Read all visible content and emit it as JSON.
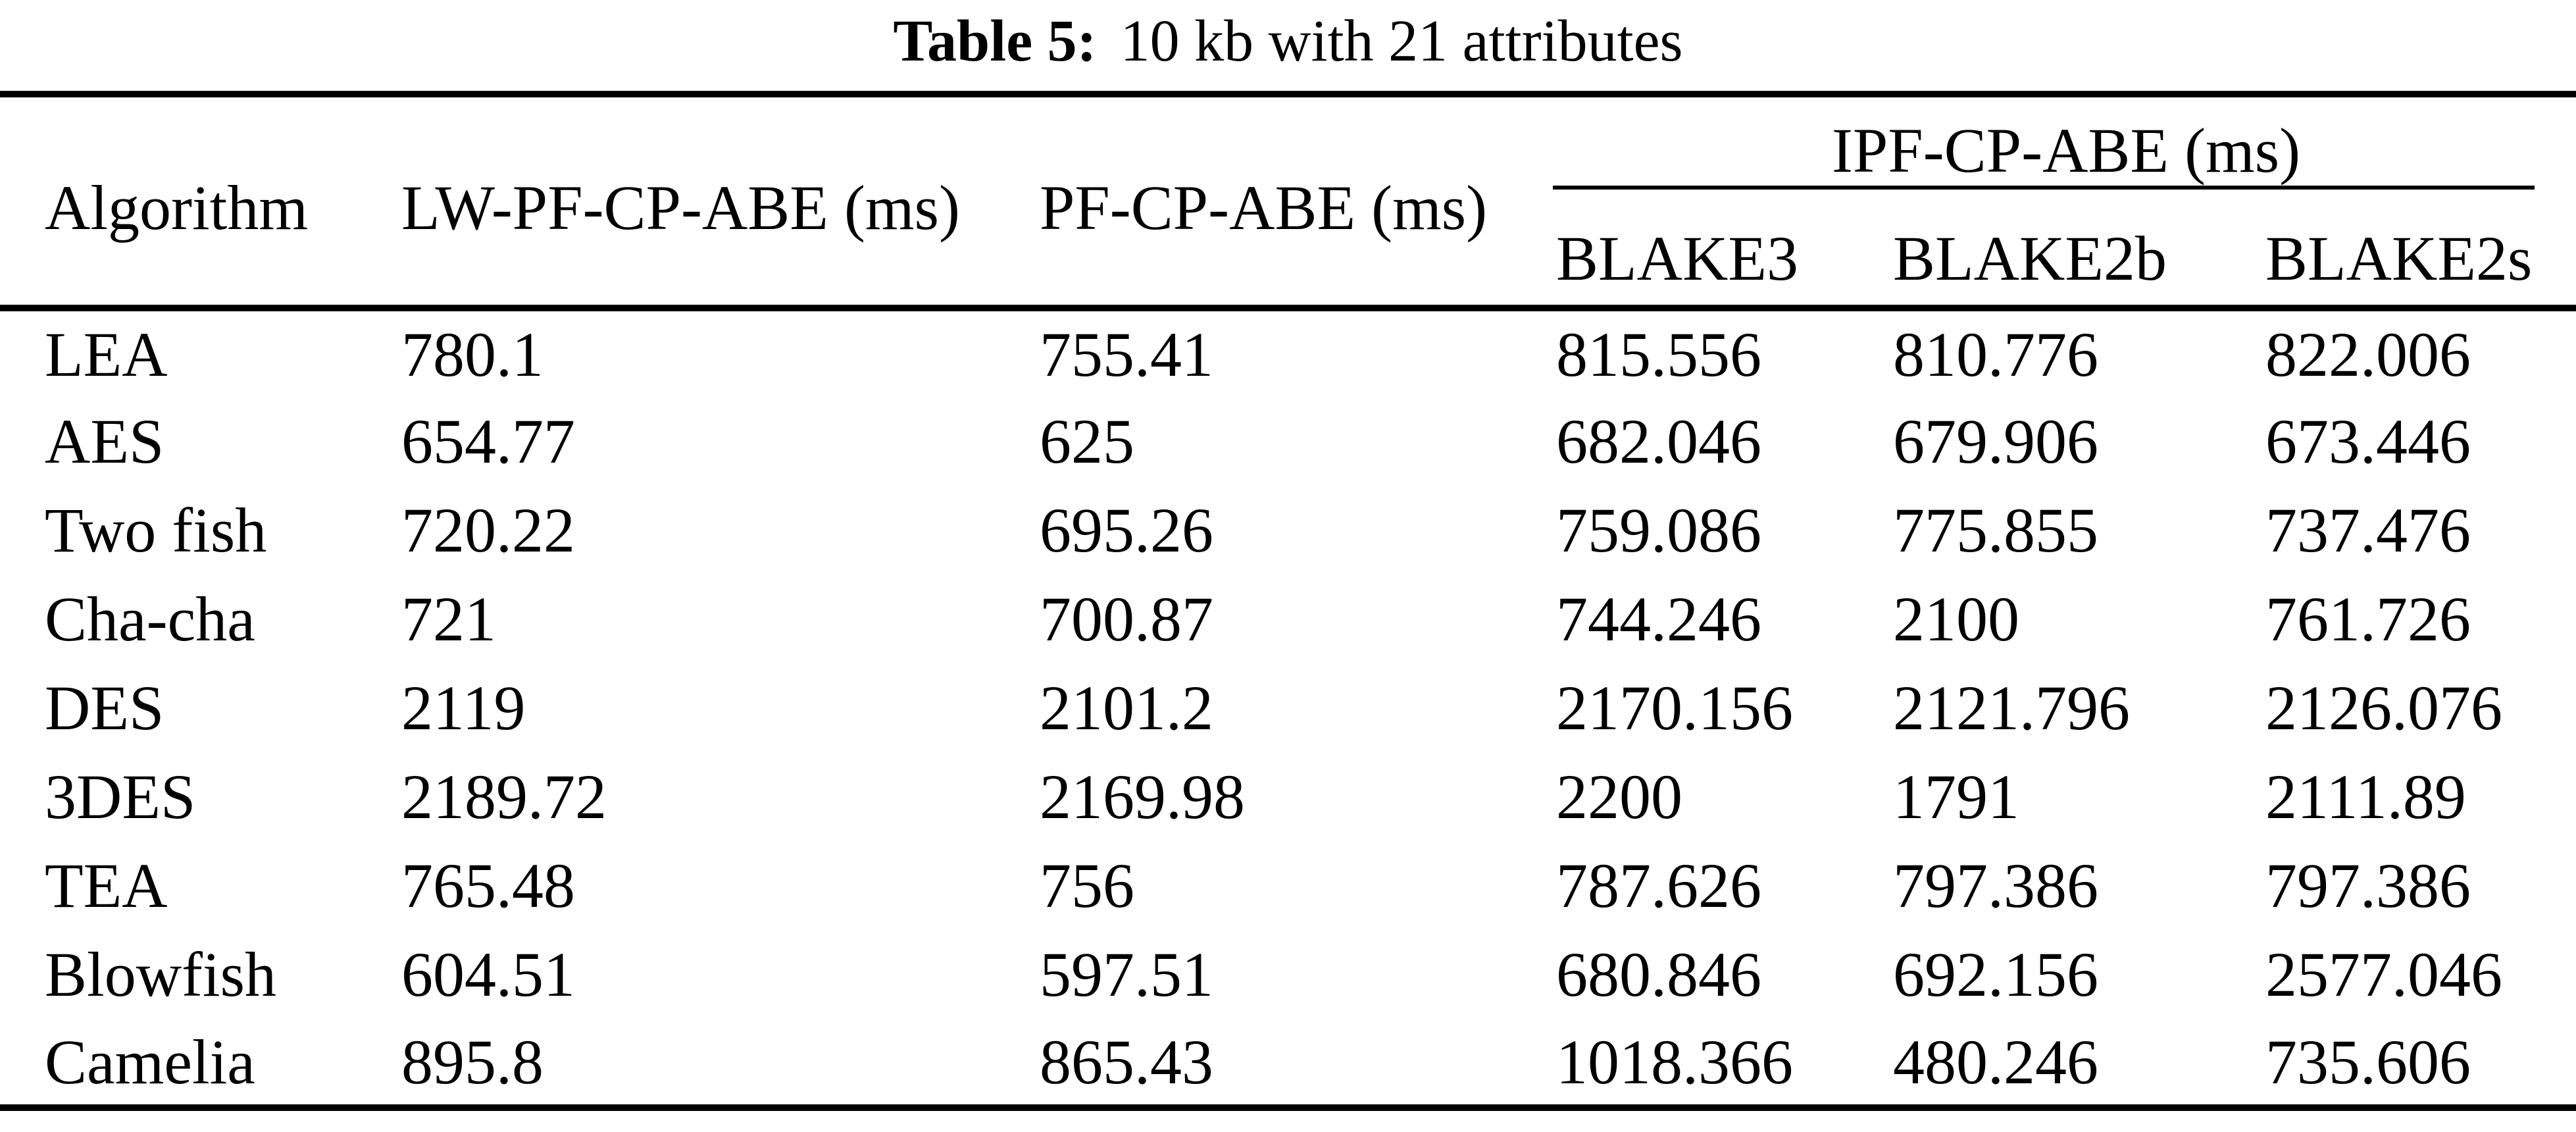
{
  "caption": {
    "label": "Table 5:",
    "title": "10 kb with 21 attributes"
  },
  "table": {
    "col_algorithm": "Algorithm",
    "col_lw": "LW-PF-CP-ABE (ms)",
    "col_pf": "PF-CP-ABE (ms)",
    "col_ipf": "IPF-CP-ABE (ms)",
    "sub_cols": [
      "BLAKE3",
      "BLAKE2b",
      "BLAKE2s"
    ],
    "rows": [
      {
        "algorithm": "LEA",
        "lw": "780.1",
        "pf": "755.41",
        "blake3": "815.556",
        "blake2b": "810.776",
        "blake2s": "822.006"
      },
      {
        "algorithm": "AES",
        "lw": "654.77",
        "pf": "625",
        "blake3": "682.046",
        "blake2b": "679.906",
        "blake2s": "673.446"
      },
      {
        "algorithm": "Two fish",
        "lw": "720.22",
        "pf": "695.26",
        "blake3": "759.086",
        "blake2b": "775.855",
        "blake2s": "737.476"
      },
      {
        "algorithm": "Cha-cha",
        "lw": "721",
        "pf": "700.87",
        "blake3": "744.246",
        "blake2b": "2100",
        "blake2s": "761.726"
      },
      {
        "algorithm": "DES",
        "lw": "2119",
        "pf": "2101.2",
        "blake3": "2170.156",
        "blake2b": "2121.796",
        "blake2s": "2126.076"
      },
      {
        "algorithm": "3DES",
        "lw": "2189.72",
        "pf": "2169.98",
        "blake3": "2200",
        "blake2b": "1791",
        "blake2s": "2111.89"
      },
      {
        "algorithm": "TEA",
        "lw": "765.48",
        "pf": "756",
        "blake3": "787.626",
        "blake2b": "797.386",
        "blake2s": "797.386"
      },
      {
        "algorithm": "Blowfish",
        "lw": "604.51",
        "pf": "597.51",
        "blake3": "680.846",
        "blake2b": "692.156",
        "blake2s": "2577.046"
      },
      {
        "algorithm": "Camelia",
        "lw": "895.8",
        "pf": "865.43",
        "blake3": "1018.366",
        "blake2b": "480.246",
        "blake2s": "735.606"
      }
    ]
  }
}
